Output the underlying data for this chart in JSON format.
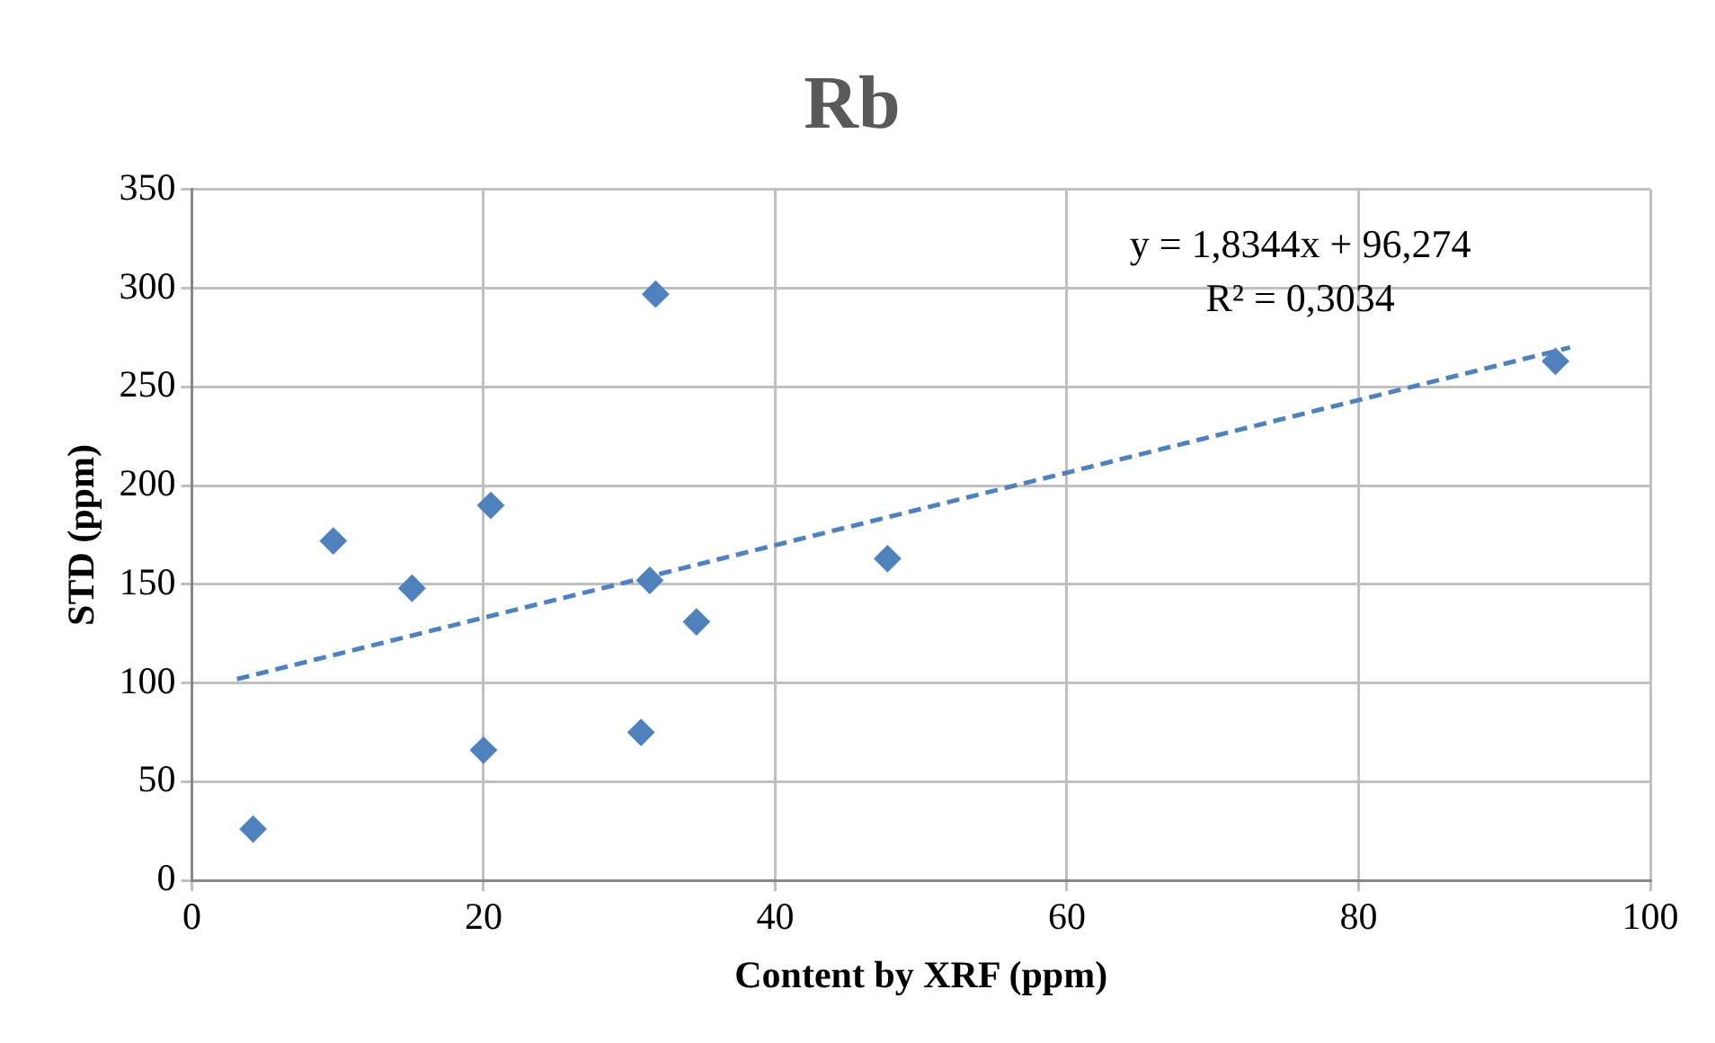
{
  "chart_data": {
    "type": "scatter",
    "title": "Rb",
    "xlabel": "Content by XRF (ppm)",
    "ylabel": "STD (ppm)",
    "xlim": [
      0,
      100
    ],
    "xticks": [
      0,
      20,
      40,
      60,
      80,
      100
    ],
    "ylim": [
      0,
      350
    ],
    "yticks": [
      0,
      50,
      100,
      150,
      200,
      250,
      300,
      350
    ],
    "grid": true,
    "marker": "diamond",
    "series": [
      {
        "color": "#4f81bd",
        "x": [
          4.2,
          9.7,
          15.1,
          20.0,
          20.5,
          30.8,
          31.4,
          31.8,
          34.6,
          47.7,
          93.5
        ],
        "values": [
          26,
          172,
          148,
          66,
          190,
          75,
          152,
          297,
          131,
          163,
          263
        ]
      },
      {
        "type": "line",
        "color": "#4f81bd",
        "line_style": "dashed",
        "marker": "none",
        "x": [
          3.1,
          94.5
        ],
        "values": [
          102,
          270
        ]
      }
    ],
    "annotations": [
      "y = 1,8344x + 96,274",
      "R² = 0,3034"
    ]
  }
}
